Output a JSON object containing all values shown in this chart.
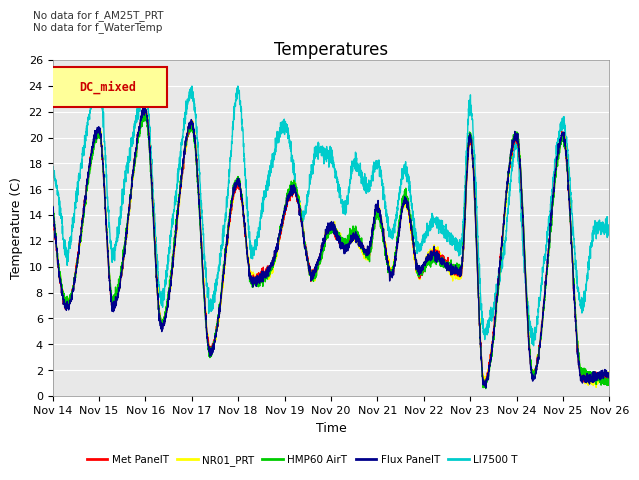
{
  "title": "Temperatures",
  "ylabel": "Temperature (C)",
  "xlabel": "Time",
  "ylim": [
    0,
    26
  ],
  "yticks": [
    0,
    2,
    4,
    6,
    8,
    10,
    12,
    14,
    16,
    18,
    20,
    22,
    24,
    26
  ],
  "xtick_labels": [
    "Nov 14",
    "Nov 15",
    "Nov 16",
    "Nov 17",
    "Nov 18",
    "Nov 19",
    "Nov 20",
    "Nov 21",
    "Nov 22",
    "Nov 23",
    "Nov 24",
    "Nov 25",
    "Nov 26"
  ],
  "note1": "No data for f_AM25T_PRT",
  "note2": "No data for f_WaterTemp",
  "legend_label": "DC_mixed",
  "series_labels": [
    "Met PanelT",
    "NR01_PRT",
    "HMP60 AirT",
    "Flux PanelT",
    "LI7500 T"
  ],
  "series_colors": [
    "#ff0000",
    "#ffff00",
    "#00cc00",
    "#00008b",
    "#00cccc"
  ],
  "plot_bg_color": "#e8e8e8",
  "title_fontsize": 12,
  "axis_fontsize": 9,
  "tick_fontsize": 8,
  "legend_box_facecolor": "#ffff99",
  "legend_box_edgecolor": "#cc0000",
  "linewidth": 1.0
}
